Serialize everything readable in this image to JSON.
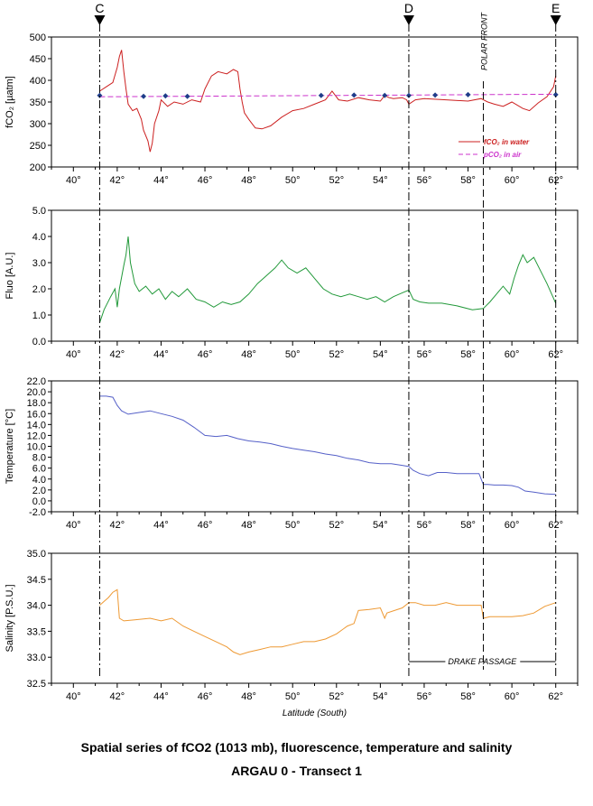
{
  "caption": {
    "line1": "Spatial series of fCO2 (1013 mb), fluorescence, temperature and salinity",
    "line2": "ARGAU 0  - Transect 1"
  },
  "markers": [
    {
      "label": "C",
      "lat": 41.2
    },
    {
      "label": "D",
      "lat": 55.3
    },
    {
      "label": "E",
      "lat": 62.0
    }
  ],
  "polar_front": {
    "label": "POLAR FRONT",
    "lat": 58.7
  },
  "drake_passage": {
    "label": "DRAKE PASSAGE",
    "from": 55.3,
    "to": 62.0
  },
  "colors": {
    "fco2": "#cc2020",
    "pco2": "#cc33cc",
    "pco2_points": "#1f3d8a",
    "fluo": "#22993a",
    "temp": "#5560c8",
    "sal": "#ee9933"
  },
  "chart_data": [
    {
      "type": "line",
      "ylabel": "fCO₂ [µatm]",
      "ylim": [
        200,
        500
      ],
      "yticks": [
        "200",
        "250",
        "300",
        "350",
        "400",
        "450",
        "500"
      ],
      "xlim": [
        39,
        63
      ],
      "xticks": [
        "40°",
        "42°",
        "44°",
        "46°",
        "48°",
        "50°",
        "52°",
        "54°",
        "56°",
        "58°",
        "60°",
        "62°"
      ],
      "legend": {
        "position": "bottom-right",
        "entries": [
          "fCO₂ in water",
          "pCO₂ in air"
        ]
      },
      "series": [
        {
          "name": "fCO₂ in water",
          "x": [
            41.2,
            41.5,
            41.8,
            42.0,
            42.1,
            42.2,
            42.3,
            42.4,
            42.5,
            42.7,
            42.9,
            43.1,
            43.2,
            43.4,
            43.5,
            43.6,
            43.7,
            43.9,
            44.0,
            44.3,
            44.6,
            45.0,
            45.4,
            45.8,
            46.0,
            46.3,
            46.6,
            47.0,
            47.3,
            47.5,
            47.6,
            47.7,
            47.8,
            48.0,
            48.3,
            48.6,
            49.0,
            49.5,
            50.0,
            50.5,
            51.0,
            51.5,
            51.8,
            52.1,
            52.5,
            53.0,
            53.5,
            54.0,
            54.2,
            54.4,
            54.6,
            55.0,
            55.2,
            55.3,
            55.6,
            56.0,
            57.0,
            58.0,
            58.6,
            58.7,
            58.9,
            59.2,
            59.6,
            60.0,
            60.5,
            60.8,
            61.2,
            61.6,
            61.9,
            62.0
          ],
          "y": [
            375,
            385,
            395,
            430,
            455,
            470,
            420,
            380,
            345,
            330,
            335,
            310,
            285,
            260,
            235,
            255,
            300,
            330,
            355,
            340,
            350,
            345,
            355,
            350,
            380,
            410,
            420,
            415,
            425,
            420,
            380,
            350,
            325,
            310,
            290,
            288,
            295,
            315,
            330,
            335,
            345,
            355,
            375,
            355,
            352,
            360,
            355,
            352,
            365,
            360,
            358,
            360,
            355,
            345,
            355,
            358,
            355,
            352,
            358,
            355,
            350,
            345,
            340,
            350,
            335,
            330,
            348,
            362,
            385,
            410
          ]
        },
        {
          "name": "pCO₂ in air",
          "x": [
            41.2,
            62.0
          ],
          "y": [
            362,
            368
          ],
          "points_x": [
            41.2,
            43.2,
            44.2,
            45.2,
            51.3,
            52.8,
            54.2,
            55.3,
            56.5,
            58.0,
            62.0
          ],
          "points_y": [
            365,
            363,
            364,
            363,
            365,
            366,
            365,
            365,
            366,
            367,
            367
          ]
        }
      ]
    },
    {
      "type": "line",
      "ylabel": "Fluo [A.U.]",
      "ylim": [
        0.0,
        5.0
      ],
      "yticks": [
        "0.0",
        "1.0",
        "2.0",
        "3.0",
        "4.0",
        "5.0"
      ],
      "xlim": [
        39,
        63
      ],
      "xticks": [
        "40°",
        "42°",
        "44°",
        "46°",
        "48°",
        "50°",
        "52°",
        "54°",
        "56°",
        "58°",
        "60°",
        "62°"
      ],
      "series": [
        {
          "name": "Fluorescence",
          "x": [
            41.2,
            41.4,
            41.7,
            41.9,
            42.0,
            42.1,
            42.3,
            42.4,
            42.5,
            42.6,
            42.8,
            43.0,
            43.3,
            43.6,
            43.9,
            44.2,
            44.5,
            44.8,
            45.2,
            45.6,
            46.0,
            46.4,
            46.8,
            47.2,
            47.6,
            48.0,
            48.4,
            48.8,
            49.2,
            49.5,
            49.8,
            50.2,
            50.6,
            51.0,
            51.4,
            51.8,
            52.2,
            52.6,
            53.0,
            53.4,
            53.8,
            54.2,
            54.6,
            55.0,
            55.3,
            55.5,
            55.8,
            56.2,
            56.8,
            57.5,
            58.2,
            58.7,
            59.0,
            59.3,
            59.6,
            59.9,
            60.1,
            60.3,
            60.5,
            60.7,
            61.0,
            61.3,
            61.6,
            62.0
          ],
          "y": [
            0.7,
            1.2,
            1.7,
            2.0,
            1.3,
            2.0,
            2.9,
            3.3,
            4.0,
            3.0,
            2.2,
            1.9,
            2.1,
            1.8,
            2.0,
            1.6,
            1.9,
            1.7,
            2.0,
            1.6,
            1.5,
            1.3,
            1.5,
            1.4,
            1.5,
            1.8,
            2.2,
            2.5,
            2.8,
            3.1,
            2.8,
            2.6,
            2.8,
            2.4,
            2.0,
            1.8,
            1.7,
            1.8,
            1.7,
            1.6,
            1.7,
            1.5,
            1.7,
            1.85,
            1.95,
            1.6,
            1.5,
            1.45,
            1.45,
            1.35,
            1.2,
            1.25,
            1.5,
            1.8,
            2.1,
            1.8,
            2.4,
            2.9,
            3.3,
            3.0,
            3.2,
            2.7,
            2.2,
            1.45
          ]
        }
      ]
    },
    {
      "type": "line",
      "ylabel": "Temperature [°C]",
      "ylim": [
        -2.0,
        22.0
      ],
      "yticks": [
        "-2.0",
        "0.0",
        "2.0",
        "4.0",
        "6.0",
        "8.0",
        "10.0",
        "12.0",
        "14.0",
        "16.0",
        "18.0",
        "20.0",
        "22.0"
      ],
      "xlim": [
        39,
        63
      ],
      "xticks": [
        "40°",
        "42°",
        "44°",
        "46°",
        "48°",
        "50°",
        "52°",
        "54°",
        "56°",
        "58°",
        "60°",
        "62°"
      ],
      "series": [
        {
          "name": "Temperature",
          "x": [
            41.2,
            41.5,
            41.8,
            42.0,
            42.2,
            42.5,
            43.0,
            43.5,
            44.0,
            44.5,
            45.0,
            45.5,
            46.0,
            46.5,
            47.0,
            47.5,
            48.0,
            48.5,
            49.0,
            49.5,
            50.0,
            50.5,
            51.0,
            51.5,
            52.0,
            52.5,
            53.0,
            53.5,
            54.0,
            54.5,
            55.0,
            55.3,
            55.5,
            55.8,
            56.2,
            56.6,
            57.0,
            57.5,
            58.0,
            58.5,
            58.7,
            58.9,
            59.2,
            59.6,
            60.0,
            60.3,
            60.6,
            61.0,
            61.5,
            62.0
          ],
          "y": [
            19.2,
            19.2,
            19.0,
            17.5,
            16.5,
            15.9,
            16.2,
            16.5,
            16.0,
            15.5,
            14.8,
            13.5,
            12.0,
            11.8,
            12.0,
            11.4,
            11.0,
            10.8,
            10.5,
            10.0,
            9.6,
            9.3,
            9.0,
            8.6,
            8.3,
            7.8,
            7.5,
            7.0,
            6.8,
            6.8,
            6.5,
            6.3,
            5.6,
            5.0,
            4.6,
            5.2,
            5.2,
            5.0,
            5.0,
            5.0,
            3.0,
            3.0,
            2.9,
            2.9,
            2.8,
            2.5,
            1.8,
            1.6,
            1.3,
            1.2
          ]
        }
      ]
    },
    {
      "type": "line",
      "ylabel": "Salinity [P.S.U.]",
      "ylim": [
        32.5,
        35.0
      ],
      "yticks": [
        "32.5",
        "33.0",
        "33.5",
        "34.0",
        "34.5",
        "35.0"
      ],
      "xlim": [
        39,
        63
      ],
      "xticks": [
        "40°",
        "42°",
        "44°",
        "46°",
        "48°",
        "50°",
        "52°",
        "54°",
        "56°",
        "58°",
        "60°",
        "62°"
      ],
      "xlabel": "Latitude (South)",
      "series": [
        {
          "name": "Salinity",
          "x": [
            41.2,
            41.6,
            41.8,
            42.0,
            42.1,
            42.3,
            42.8,
            43.5,
            44.0,
            44.5,
            45.0,
            45.5,
            46.0,
            46.5,
            47.0,
            47.3,
            47.6,
            48.0,
            48.5,
            49.0,
            49.5,
            50.0,
            50.5,
            51.0,
            51.5,
            52.0,
            52.5,
            52.8,
            53.0,
            53.5,
            54.0,
            54.2,
            54.3,
            55.0,
            55.3,
            55.6,
            56.0,
            56.5,
            57.0,
            57.5,
            58.0,
            58.5,
            58.6,
            58.7,
            59.0,
            59.5,
            60.0,
            60.5,
            61.0,
            61.5,
            62.0
          ],
          "y": [
            34.0,
            34.15,
            34.25,
            34.3,
            33.75,
            33.7,
            33.72,
            33.75,
            33.7,
            33.75,
            33.6,
            33.5,
            33.4,
            33.3,
            33.2,
            33.1,
            33.05,
            33.1,
            33.15,
            33.2,
            33.2,
            33.25,
            33.3,
            33.3,
            33.35,
            33.45,
            33.6,
            33.65,
            33.9,
            33.92,
            33.95,
            33.75,
            33.85,
            33.95,
            34.05,
            34.05,
            34.0,
            34.0,
            34.05,
            34.0,
            34.0,
            34.0,
            34.0,
            33.75,
            33.78,
            33.78,
            33.78,
            33.8,
            33.85,
            33.98,
            34.05
          ]
        }
      ]
    }
  ]
}
